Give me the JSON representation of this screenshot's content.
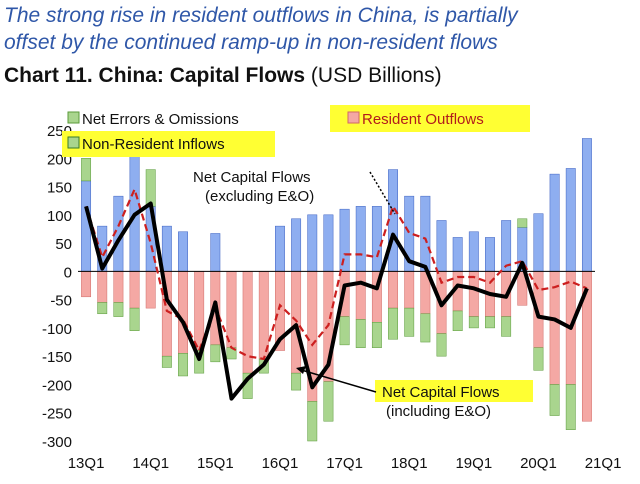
{
  "headline": {
    "line1": "The strong rise in resident outflows in China, is partially",
    "line2": "offset by the continued ramp-up in non-resident flows"
  },
  "chart_title": {
    "main": "Chart 11. China: Capital Flows",
    "units": "(USD Billions)"
  },
  "colors": {
    "headline": "#2f57a8",
    "non_resident_bar": "#8eaef0",
    "resident_bar": "#f4a8a4",
    "errors_bar": "#a9d58e",
    "net_including_line": "#000000",
    "net_excluding_line": "#cc1f1f",
    "highlight": "#ffff33"
  },
  "chart_data": {
    "type": "bar",
    "x_tick_labels": [
      "13Q1",
      "14Q1",
      "15Q1",
      "16Q1",
      "17Q1",
      "18Q1",
      "19Q1",
      "20Q1",
      "21Q1"
    ],
    "ylim": [
      -300,
      250
    ],
    "y_ticks": [
      250,
      200,
      150,
      100,
      50,
      0,
      -50,
      -100,
      -150,
      -200,
      -250,
      -300
    ],
    "grid": false,
    "legend": [
      {
        "key": "errors",
        "label": "Net Errors & Omissions"
      },
      {
        "key": "non_resident",
        "label": "Non-Resident Inflows"
      },
      {
        "key": "resident",
        "label": "Resident Outflows"
      }
    ],
    "series": [
      {
        "name": "Non-Resident Inflows",
        "key": "non_resident",
        "values": [
          160,
          80,
          133,
          210,
          115,
          80,
          70,
          0,
          67,
          0,
          0,
          0,
          80,
          93,
          100,
          100,
          110,
          115,
          115,
          180,
          133,
          133,
          90,
          60,
          70,
          60,
          90,
          78,
          102,
          172,
          182,
          235
        ]
      },
      {
        "name": "Resident Outflows",
        "key": "resident",
        "values": [
          -45,
          -55,
          -55,
          -65,
          -65,
          -150,
          -145,
          -140,
          -130,
          -135,
          -180,
          -155,
          -140,
          -180,
          -230,
          -195,
          -80,
          -85,
          -90,
          -65,
          -65,
          -75,
          -110,
          -70,
          -80,
          -80,
          -80,
          -60,
          -135,
          -200,
          -200,
          -265
        ]
      },
      {
        "name": "Net Errors & Omissions",
        "key": "errors",
        "values": [
          40,
          -20,
          -25,
          -40,
          65,
          -20,
          -40,
          -40,
          -30,
          -20,
          -45,
          -25,
          0,
          -30,
          -70,
          -70,
          -50,
          -50,
          -45,
          -55,
          -50,
          -50,
          -40,
          -35,
          -20,
          -20,
          -35,
          15,
          -40,
          -55,
          -80,
          0
        ]
      },
      {
        "name": "Net Capital Flows (excluding E&O)",
        "key": "net_excluding",
        "values": [
          115,
          25,
          80,
          145,
          50,
          -70,
          -85,
          -140,
          -63,
          -135,
          -150,
          -155,
          -60,
          -87,
          -130,
          -95,
          30,
          30,
          25,
          115,
          68,
          58,
          -20,
          -10,
          -10,
          -20,
          10,
          18,
          -33,
          -28,
          -18,
          -30
        ]
      },
      {
        "name": "Net Capital Flows (including E&O)",
        "key": "net_including",
        "values": [
          115,
          5,
          55,
          100,
          120,
          -50,
          -90,
          -155,
          -55,
          -225,
          -190,
          -165,
          -120,
          -95,
          -205,
          -165,
          -25,
          -20,
          -30,
          65,
          18,
          8,
          -60,
          -25,
          -30,
          -40,
          -45,
          15,
          -80,
          -85,
          -100,
          -30
        ]
      }
    ],
    "annotations": {
      "net_excluding_line1": "Net Capital Flows",
      "net_excluding_line2": "(excluding E&O)",
      "net_including_line1": "Net Capital Flows",
      "net_including_line2": "(including E&O)"
    }
  }
}
